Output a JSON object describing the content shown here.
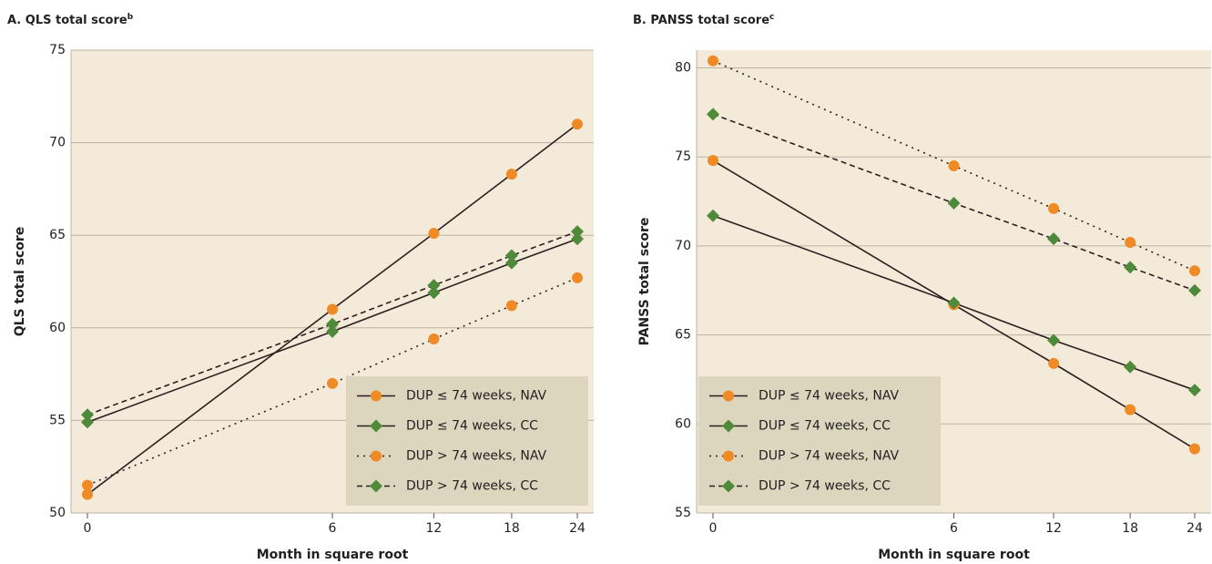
{
  "chart_data": [
    {
      "type": "line",
      "title": "A. QLS total score",
      "title_note": "b",
      "xlabel": "Month in square root",
      "ylabel": "QLS total score",
      "x": [
        0,
        6,
        12,
        18,
        24
      ],
      "xscale": "sqrt",
      "xlim": [
        0,
        24
      ],
      "xticks": [
        0,
        6,
        12,
        18,
        24
      ],
      "ylim": [
        50,
        75
      ],
      "yticks": [
        50,
        55,
        60,
        65,
        70,
        75
      ],
      "grid": true,
      "legend": "lower right",
      "series": [
        {
          "name": "DUP ≤ 74 weeks, NAV",
          "color": "#f08a24",
          "marker": "circle",
          "linestyle": "solid",
          "values": [
            51.0,
            61.0,
            65.1,
            68.3,
            71.0
          ]
        },
        {
          "name": "DUP ≤ 74 weeks, CC",
          "color": "#4e8a3a",
          "marker": "diamond",
          "linestyle": "solid",
          "values": [
            54.9,
            59.8,
            61.9,
            63.5,
            64.8
          ]
        },
        {
          "name": "DUP > 74 weeks, NAV",
          "color": "#f08a24",
          "marker": "circle",
          "linestyle": "dotted",
          "values": [
            51.5,
            57.0,
            59.4,
            61.2,
            62.7
          ]
        },
        {
          "name": "DUP > 74 weeks, CC",
          "color": "#4e8a3a",
          "marker": "diamond",
          "linestyle": "dashed",
          "values": [
            55.3,
            60.2,
            62.3,
            63.9,
            65.2
          ]
        }
      ]
    },
    {
      "type": "line",
      "title": "B. PANSS total score",
      "title_note": "c",
      "xlabel": "Month in square root",
      "ylabel": "PANSS total score",
      "x": [
        0,
        6,
        12,
        18,
        24
      ],
      "xscale": "sqrt",
      "xlim": [
        0,
        24
      ],
      "xticks": [
        0,
        6,
        12,
        18,
        24
      ],
      "ylim": [
        55,
        81
      ],
      "yticks": [
        55,
        60,
        65,
        70,
        75,
        80
      ],
      "grid": true,
      "legend": "lower left",
      "series": [
        {
          "name": "DUP ≤ 74 weeks, NAV",
          "color": "#f08a24",
          "marker": "circle",
          "linestyle": "solid",
          "values": [
            74.8,
            66.7,
            63.4,
            60.8,
            58.6
          ]
        },
        {
          "name": "DUP ≤ 74 weeks, CC",
          "color": "#4e8a3a",
          "marker": "diamond",
          "linestyle": "solid",
          "values": [
            71.7,
            66.8,
            64.7,
            63.2,
            61.9
          ]
        },
        {
          "name": "DUP > 74 weeks, NAV",
          "color": "#f08a24",
          "marker": "circle",
          "linestyle": "dotted",
          "values": [
            80.4,
            74.5,
            72.1,
            70.2,
            68.6
          ]
        },
        {
          "name": "DUP > 74 weeks, CC",
          "color": "#4e8a3a",
          "marker": "diamond",
          "linestyle": "dashed",
          "values": [
            77.4,
            72.4,
            70.4,
            68.8,
            67.5
          ]
        }
      ]
    }
  ]
}
